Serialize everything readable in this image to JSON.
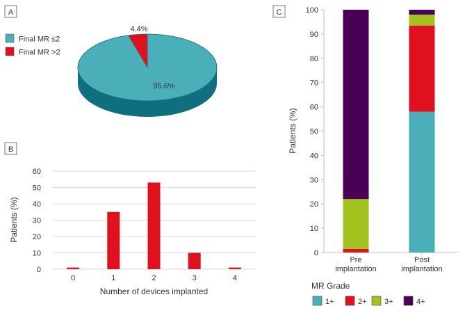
{
  "panels": {
    "a": "A",
    "b": "B",
    "c": "C"
  },
  "colors": {
    "teal": "#4aafb9",
    "teal_side": "#0f6f7f",
    "red": "#e0101f",
    "green": "#a1c21f",
    "purple": "#4a0054",
    "grid": "#d9d9d9",
    "axis": "#bfbfbf"
  },
  "chart_data": [
    {
      "panel": "A",
      "type": "pie",
      "style": "3d",
      "slices": [
        {
          "label": "Final MR ≤2",
          "value": 95.6,
          "value_label": "95.6%",
          "color": "#4aafb9"
        },
        {
          "label": "Final MR >2",
          "value": 4.4,
          "value_label": "4.4%",
          "color": "#e0101f"
        }
      ],
      "legend_placement": "top-left"
    },
    {
      "panel": "B",
      "type": "bar",
      "categories": [
        "0",
        "1",
        "2",
        "3",
        "4"
      ],
      "values": [
        1,
        35,
        53,
        10,
        1
      ],
      "xlabel": "Number of devices implanted",
      "ylabel": "Patients (%)",
      "ylim": [
        0,
        60
      ],
      "yticks": [
        "0",
        "10",
        "20",
        "30",
        "40",
        "50",
        "60"
      ],
      "grid": true,
      "color": "#e0101f"
    },
    {
      "panel": "C",
      "type": "bar",
      "stacked": true,
      "categories": [
        [
          "Pre",
          "implantation"
        ],
        [
          "Post",
          "implantation"
        ]
      ],
      "series": [
        {
          "name": "1+",
          "values": [
            0,
            58
          ],
          "color": "#4aafb9"
        },
        {
          "name": "2+",
          "values": [
            1.5,
            35.5
          ],
          "color": "#e0101f"
        },
        {
          "name": "3+",
          "values": [
            20.5,
            4.5
          ],
          "color": "#a1c21f"
        },
        {
          "name": "4+",
          "values": [
            78,
            2
          ],
          "color": "#4a0054"
        }
      ],
      "ylabel": "Patients (%)",
      "ylim": [
        0,
        100
      ],
      "yticks": [
        "0",
        "10",
        "20",
        "30",
        "40",
        "50",
        "60",
        "70",
        "80",
        "90",
        "100"
      ],
      "grid": false,
      "legend_title": "MR Grade",
      "legend_placement": "bottom"
    }
  ]
}
